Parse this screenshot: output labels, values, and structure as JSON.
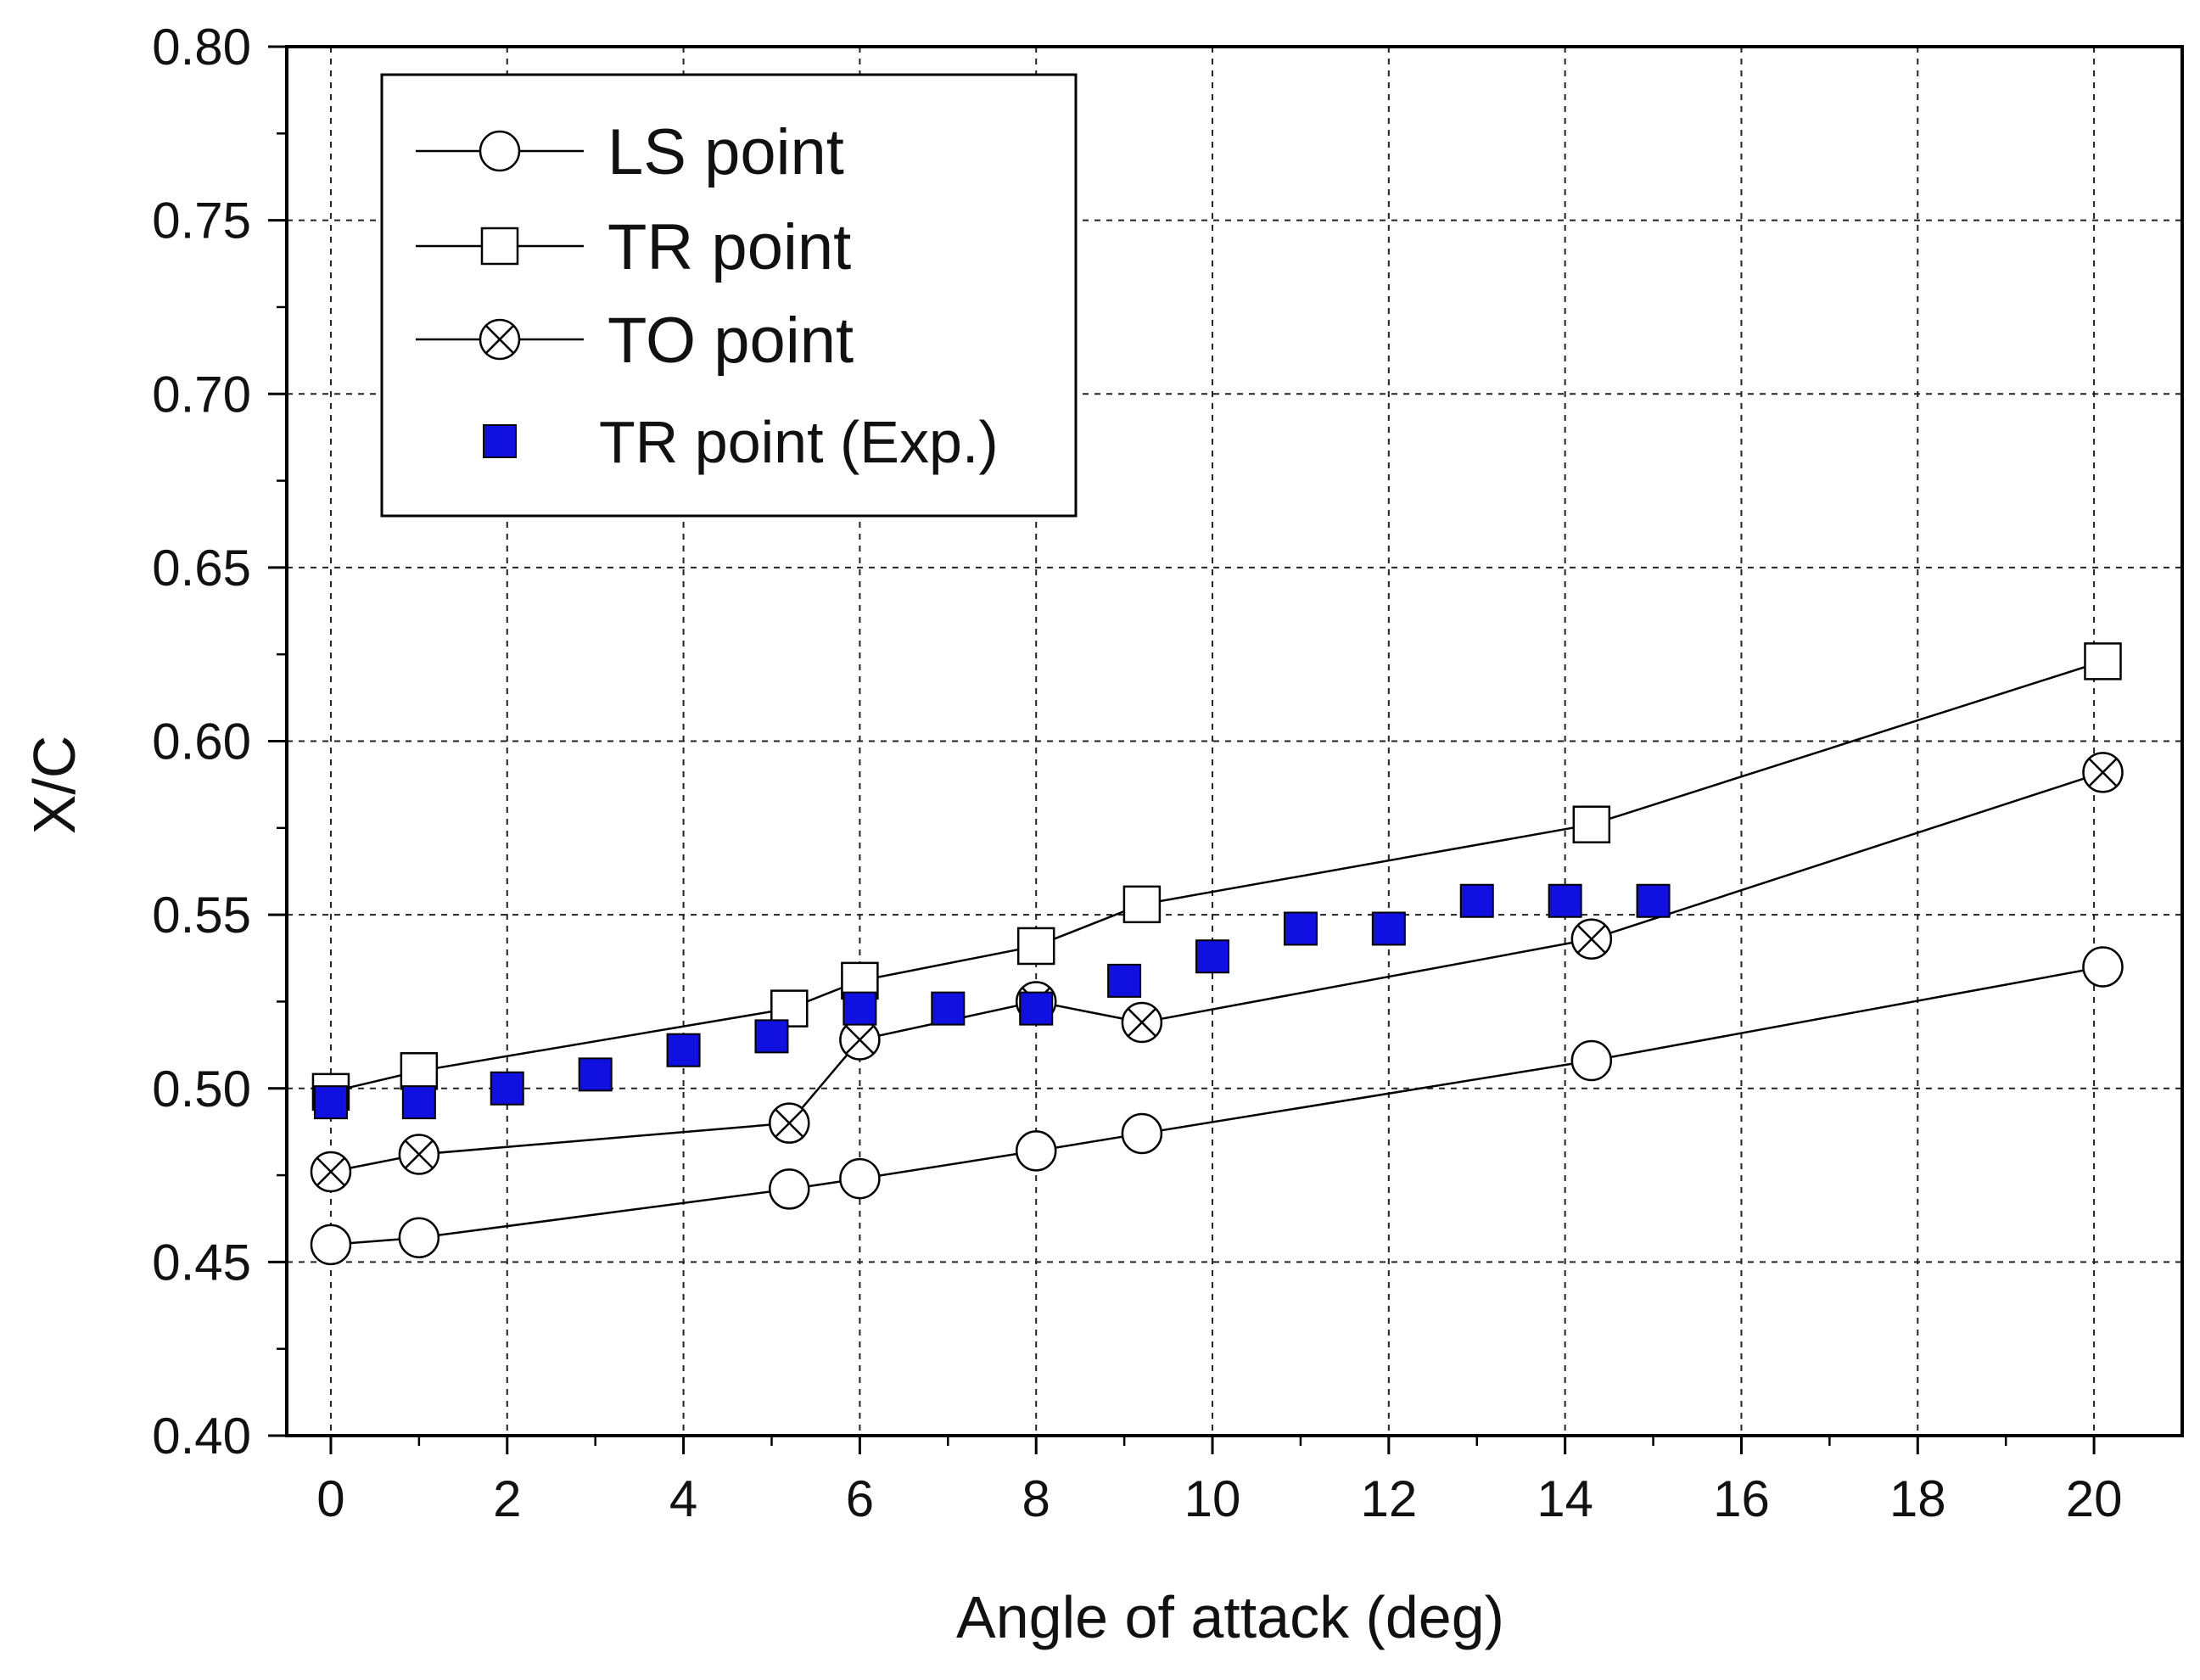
{
  "chart_data": {
    "type": "line",
    "title": "",
    "xlabel": "Angle of attack (deg)",
    "ylabel": "X/C",
    "xlim": [
      -0.5,
      21
    ],
    "ylim": [
      0.4,
      0.8
    ],
    "x_ticks": [
      0,
      2,
      4,
      6,
      8,
      10,
      12,
      14,
      16,
      18,
      20
    ],
    "x_tick_labels": [
      "0",
      "2",
      "4",
      "6",
      "8",
      "10",
      "12",
      "14",
      "16",
      "18",
      "20"
    ],
    "y_ticks": [
      0.4,
      0.45,
      0.5,
      0.55,
      0.6,
      0.65,
      0.7,
      0.75,
      0.8
    ],
    "y_tick_labels": [
      "0.40",
      "0.45",
      "0.50",
      "0.55",
      "0.60",
      "0.65",
      "0.70",
      "0.75",
      "0.80"
    ],
    "grid": true,
    "legend_position": "top-left",
    "series": [
      {
        "name": "LS point",
        "marker": "circle",
        "line": true,
        "color": "#000000",
        "x": [
          0,
          1,
          5.2,
          6,
          8,
          9.2,
          14.3,
          20.1
        ],
        "y": [
          0.455,
          0.457,
          0.471,
          0.474,
          0.482,
          0.487,
          0.508,
          0.535
        ]
      },
      {
        "name": "TR point",
        "marker": "square-open",
        "line": true,
        "color": "#000000",
        "x": [
          0,
          1,
          5.2,
          6,
          8,
          9.2,
          14.3,
          20.1
        ],
        "y": [
          0.499,
          0.505,
          0.523,
          0.531,
          0.541,
          0.553,
          0.576,
          0.623
        ]
      },
      {
        "name": "TO point",
        "marker": "circle-x",
        "line": true,
        "color": "#000000",
        "x": [
          0,
          1,
          5.2,
          6,
          8,
          9.2,
          14.3,
          20.1
        ],
        "y": [
          0.476,
          0.481,
          0.49,
          0.514,
          0.525,
          0.519,
          0.543,
          0.591
        ]
      },
      {
        "name": "TR point (Exp.)",
        "marker": "square-filled",
        "line": false,
        "color": "#1010e0",
        "x": [
          0,
          1,
          2,
          3,
          4,
          5,
          6,
          7,
          8,
          9,
          10,
          11,
          12,
          13,
          14,
          15
        ],
        "y": [
          0.496,
          0.496,
          0.5,
          0.504,
          0.511,
          0.515,
          0.523,
          0.523,
          0.523,
          0.531,
          0.538,
          0.546,
          0.546,
          0.554,
          0.554,
          0.554
        ]
      }
    ]
  }
}
